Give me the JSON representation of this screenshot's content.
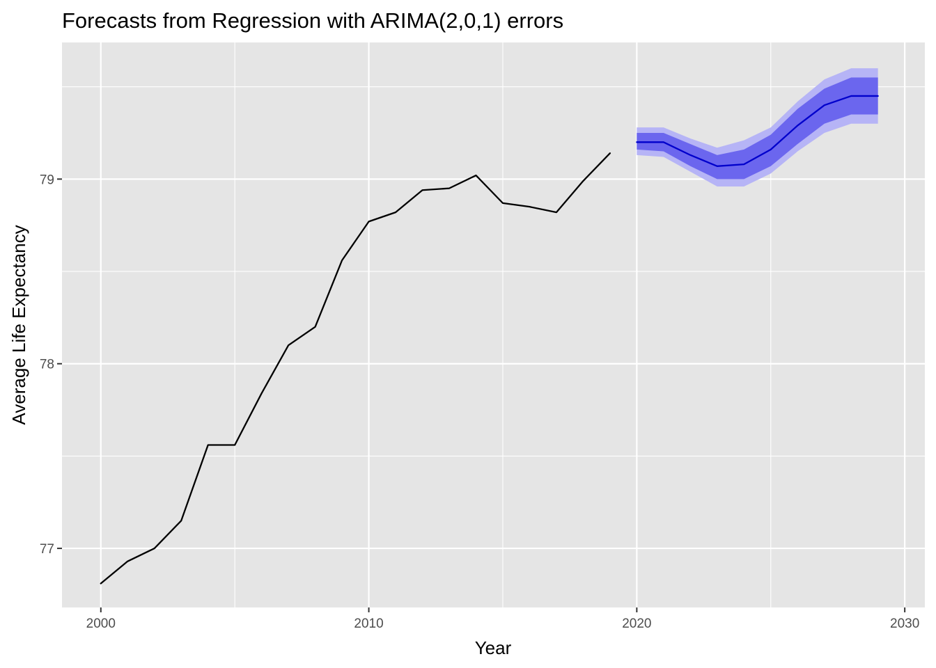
{
  "chart_data": {
    "type": "line",
    "title": "Forecasts from Regression with ARIMA(2,0,1) errors",
    "xlabel": "Year",
    "ylabel": "Average Life Expectancy",
    "xlim": [
      1998.55,
      2030.75
    ],
    "ylim": [
      76.68,
      79.74
    ],
    "x_ticks": [
      2000,
      2010,
      2020,
      2030
    ],
    "y_ticks": [
      77,
      78,
      79
    ],
    "x_tick_labels": [
      "2000",
      "2010",
      "2020",
      "2030"
    ],
    "y_tick_labels": [
      "77",
      "78",
      "79"
    ],
    "x_minor": [
      2005,
      2015,
      2025
    ],
    "y_minor": [
      77.5,
      78.5,
      79.5
    ],
    "grid": true,
    "series": [
      {
        "kind": "observed",
        "x": [
          2000,
          2001,
          2002,
          2003,
          2004,
          2005,
          2006,
          2007,
          2008,
          2009,
          2010,
          2011,
          2012,
          2013,
          2014,
          2015,
          2016,
          2017,
          2018,
          2019
        ],
        "values": [
          76.81,
          76.93,
          77.0,
          77.15,
          77.56,
          77.56,
          77.84,
          78.1,
          78.2,
          78.56,
          78.77,
          78.82,
          78.94,
          78.95,
          79.02,
          78.87,
          78.85,
          78.82,
          78.99,
          79.14
        ]
      },
      {
        "kind": "forecast",
        "x": [
          2020,
          2021,
          2022,
          2023,
          2024,
          2025,
          2026,
          2027,
          2028,
          2029
        ],
        "values": [
          79.2,
          79.2,
          79.13,
          79.07,
          79.08,
          79.16,
          79.29,
          79.4,
          79.45,
          79.45
        ],
        "lo80": [
          79.16,
          79.15,
          79.07,
          79.0,
          79.0,
          79.07,
          79.19,
          79.3,
          79.35,
          79.35
        ],
        "hi80": [
          79.25,
          79.25,
          79.19,
          79.13,
          79.16,
          79.24,
          79.38,
          79.49,
          79.55,
          79.55
        ],
        "lo95": [
          79.13,
          79.12,
          79.04,
          78.96,
          78.96,
          79.03,
          79.15,
          79.25,
          79.3,
          79.3
        ],
        "hi95": [
          79.28,
          79.28,
          79.22,
          79.17,
          79.21,
          79.28,
          79.42,
          79.54,
          79.6,
          79.6
        ]
      }
    ],
    "colors": {
      "panel": "#e5e5e5",
      "grid": "#ffffff",
      "observed_line": "#000000",
      "forecast_line": "#0000cc",
      "band80": "#6b66ee",
      "band95": "#b6b4f6"
    }
  }
}
